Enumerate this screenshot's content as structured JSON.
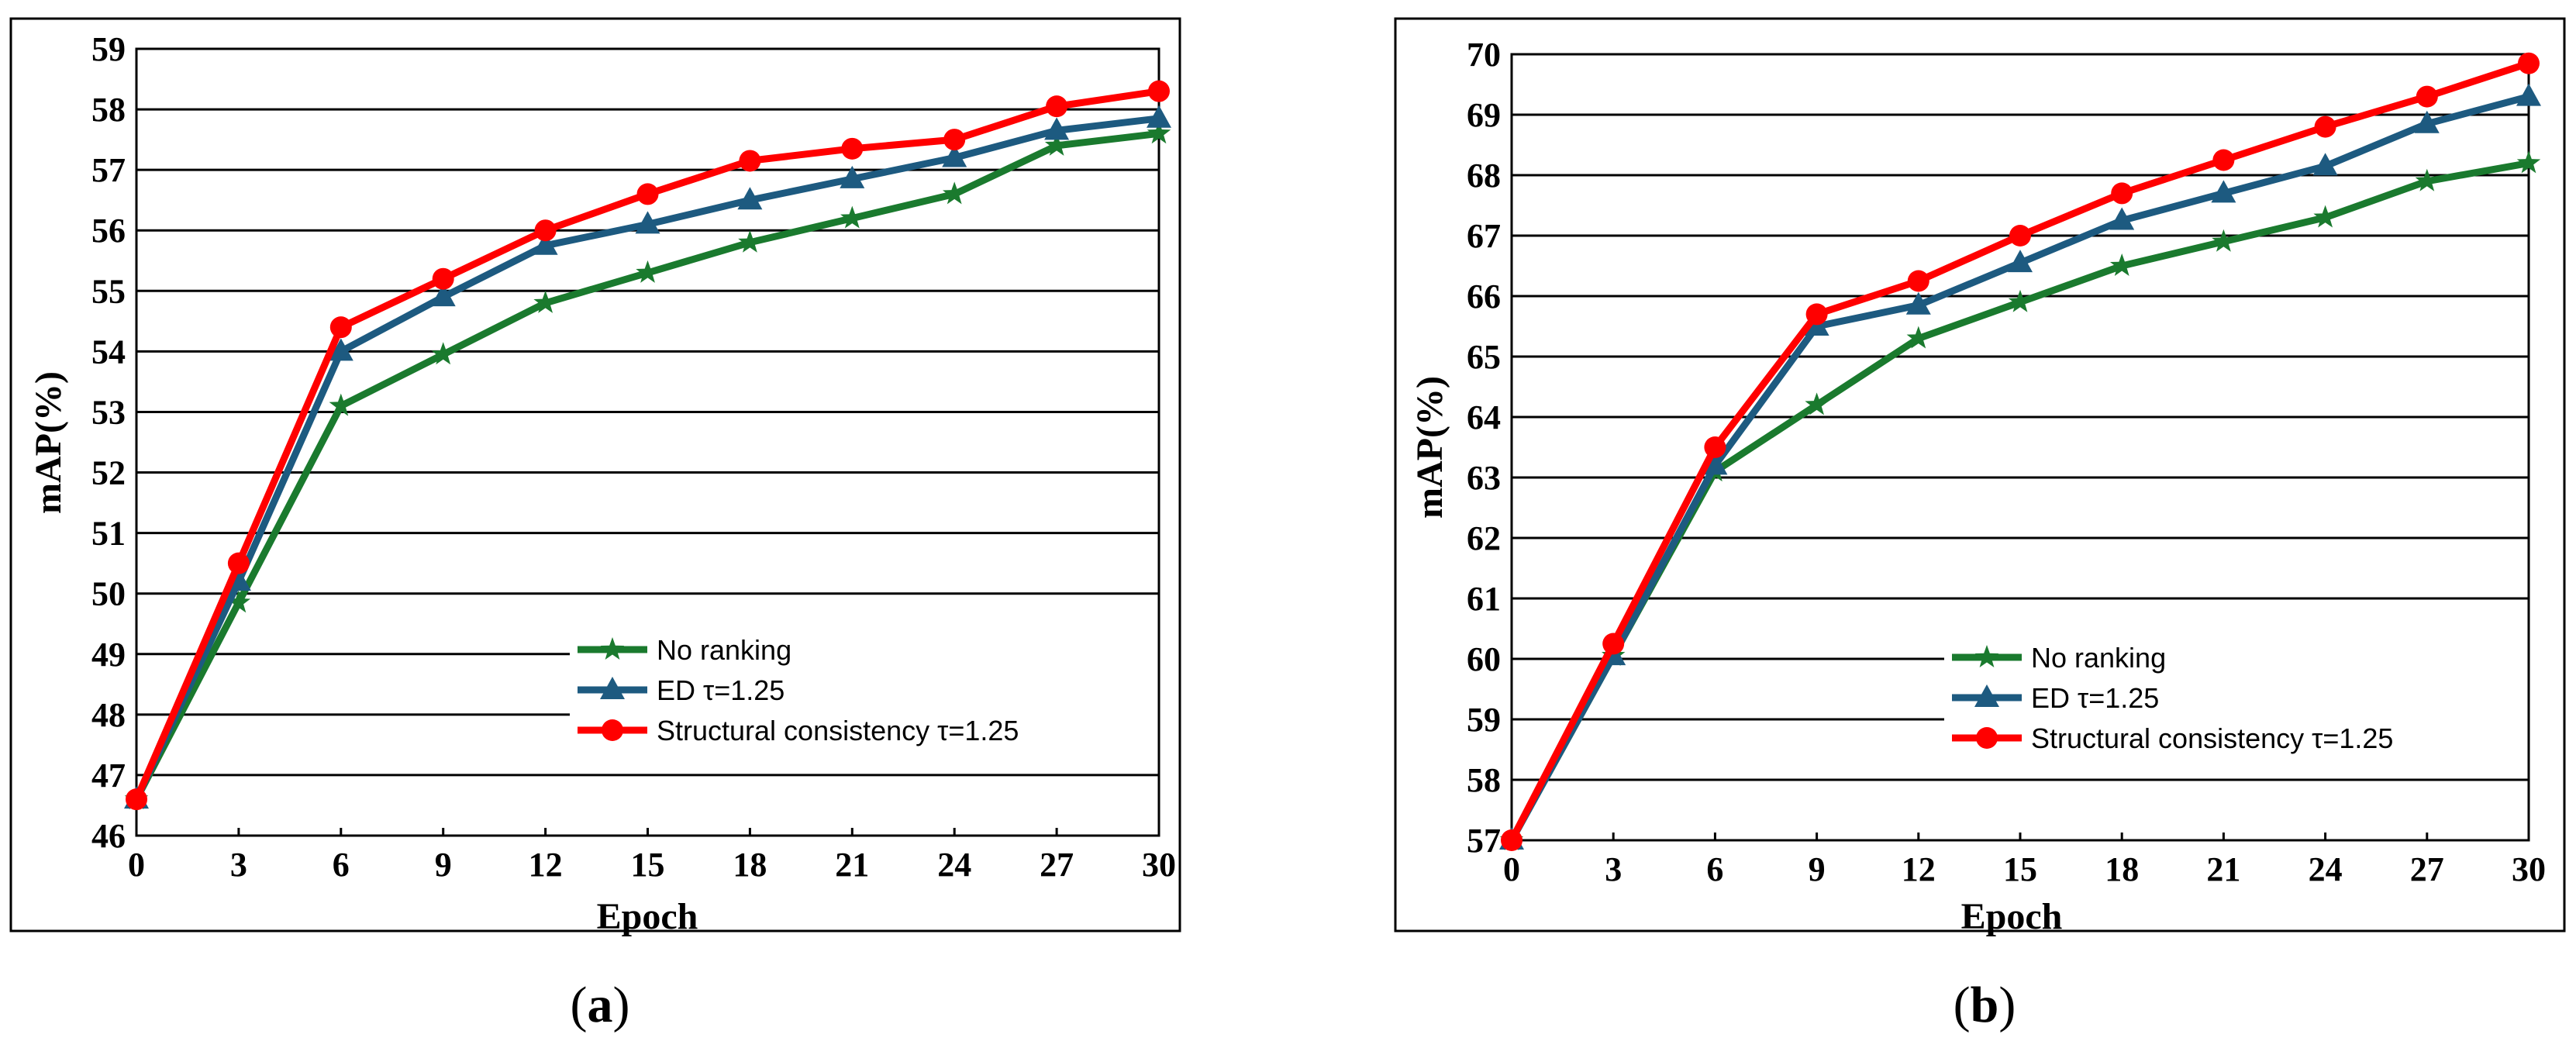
{
  "colors": {
    "no_ranking": "#1a7a2e",
    "ed": "#1d5a80",
    "structural": "#ff0000"
  },
  "chart_data": [
    {
      "id": "a",
      "type": "line",
      "caption": {
        "open": "(",
        "letter": "a",
        "close": ")"
      },
      "xlabel": "Epoch",
      "ylabel": "mAP(%)",
      "x": [
        0,
        3,
        6,
        9,
        12,
        15,
        18,
        21,
        24,
        27,
        30
      ],
      "x_ticks": [
        "0",
        "3",
        "6",
        "9",
        "12",
        "15",
        "18",
        "21",
        "24",
        "27",
        "30"
      ],
      "xlim": [
        0,
        30
      ],
      "ylim": [
        46,
        59
      ],
      "y_ticks": [
        "46",
        "47",
        "48",
        "49",
        "50",
        "51",
        "52",
        "53",
        "54",
        "55",
        "56",
        "57",
        "58",
        "59"
      ],
      "grid": "horizontal",
      "legend_position": "bottom-right",
      "series": [
        {
          "name": "No ranking",
          "marker": "star",
          "color_key": "no_ranking",
          "values": [
            46.6,
            49.85,
            53.1,
            53.95,
            54.8,
            55.3,
            55.8,
            56.2,
            56.6,
            57.4,
            57.6
          ]
        },
        {
          "name": "ED  τ=1.25",
          "marker": "triangle",
          "color_key": "ed",
          "values": [
            46.6,
            50.2,
            54.0,
            54.9,
            55.75,
            56.1,
            56.5,
            56.85,
            57.2,
            57.65,
            57.85
          ]
        },
        {
          "name": "Structural consistency τ=1.25",
          "marker": "circle",
          "color_key": "structural",
          "values": [
            46.6,
            50.5,
            54.4,
            55.2,
            56.0,
            56.6,
            57.15,
            57.35,
            57.5,
            58.05,
            58.3
          ]
        }
      ]
    },
    {
      "id": "b",
      "type": "line",
      "caption": {
        "open": "(",
        "letter": "b",
        "close": ")"
      },
      "xlabel": "Epoch",
      "ylabel": "mAP(%)",
      "x": [
        0,
        3,
        6,
        9,
        12,
        15,
        18,
        21,
        24,
        27,
        30
      ],
      "x_ticks": [
        "0",
        "3",
        "6",
        "9",
        "12",
        "15",
        "18",
        "21",
        "24",
        "27",
        "30"
      ],
      "xlim": [
        0,
        30
      ],
      "ylim": [
        57,
        70
      ],
      "y_ticks": [
        "57",
        "58",
        "59",
        "60",
        "61",
        "62",
        "63",
        "64",
        "65",
        "66",
        "67",
        "68",
        "69",
        "70"
      ],
      "grid": "horizontal",
      "legend_position": "bottom-right",
      "series": [
        {
          "name": "No ranking",
          "marker": "star",
          "color_key": "no_ranking",
          "values": [
            57.0,
            60.05,
            63.1,
            64.2,
            65.3,
            65.9,
            66.5,
            66.9,
            67.3,
            67.9,
            68.2
          ]
        },
        {
          "name": "ED  τ=1.25",
          "marker": "triangle",
          "color_key": "ed",
          "values": [
            57.0,
            60.05,
            63.2,
            65.5,
            65.85,
            66.55,
            67.25,
            67.7,
            68.15,
            68.85,
            69.3
          ]
        },
        {
          "name": "Structural consistency τ=1.25",
          "marker": "circle",
          "color_key": "structural",
          "values": [
            57.0,
            60.25,
            63.5,
            65.7,
            66.25,
            67.0,
            67.7,
            68.25,
            68.8,
            69.3,
            69.85
          ]
        }
      ]
    }
  ]
}
